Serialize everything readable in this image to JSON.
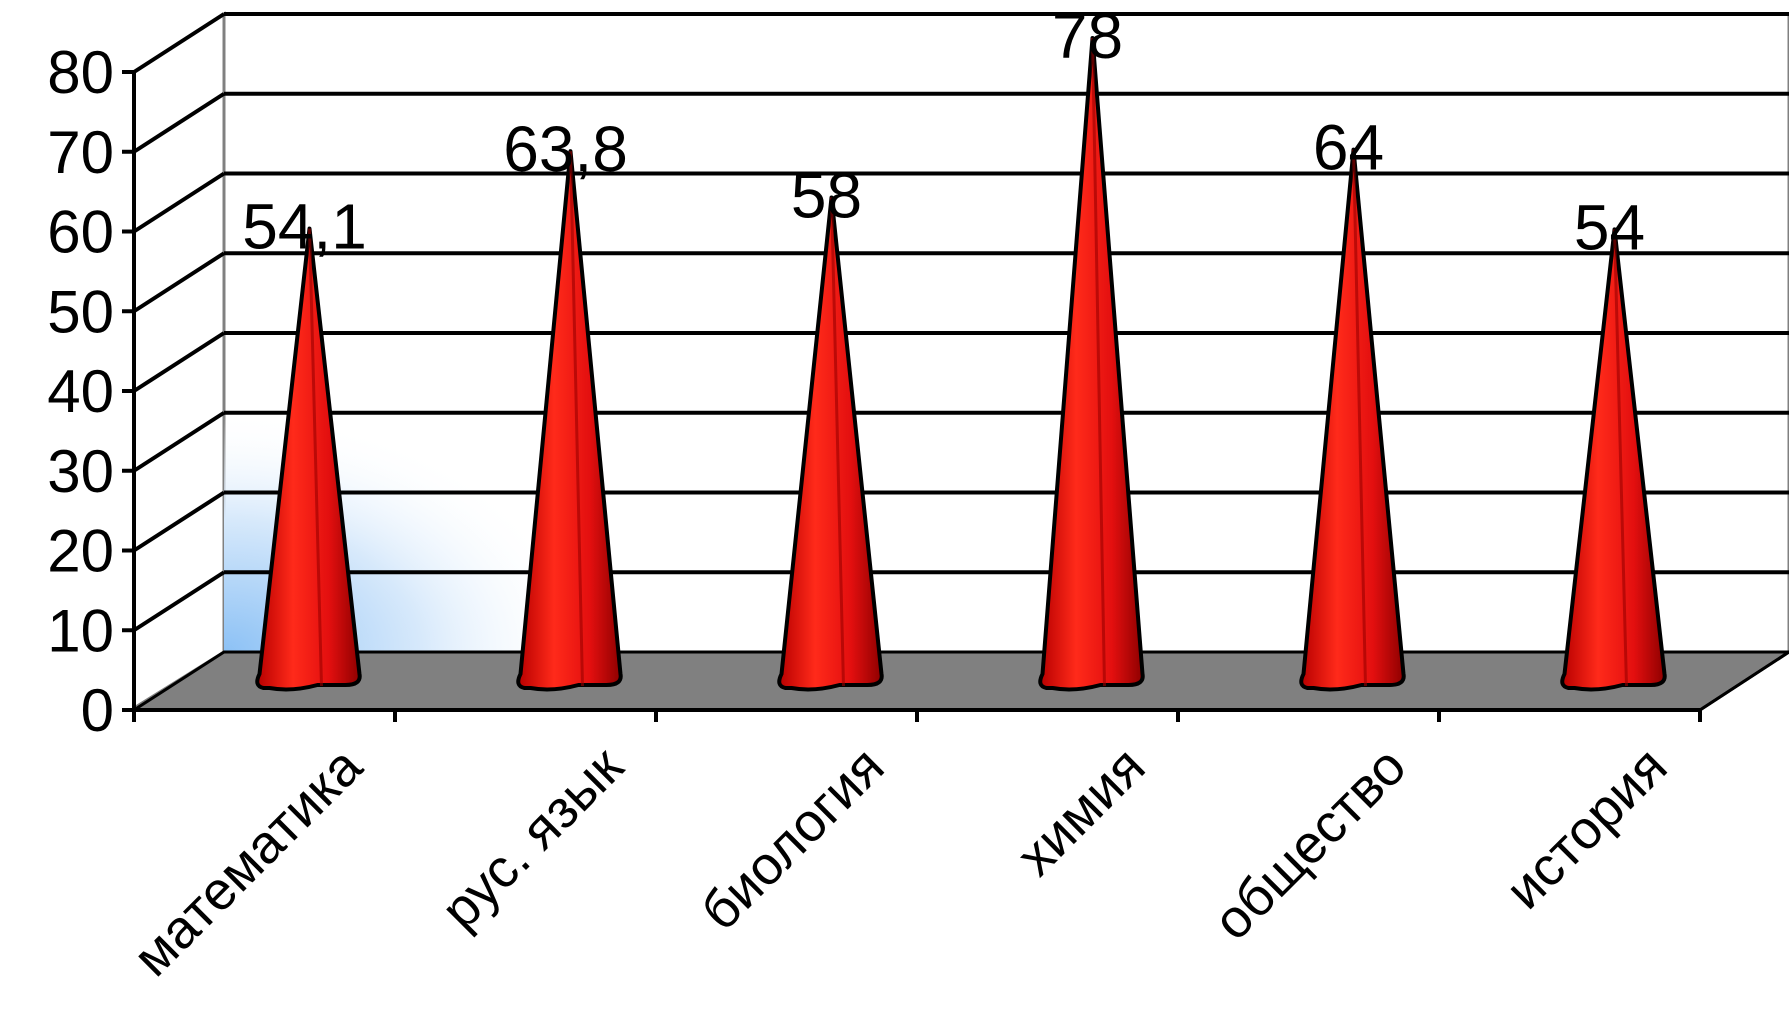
{
  "chart_data": {
    "type": "bar",
    "shape": "cone-3d",
    "categories": [
      "математика",
      "рус. язык",
      "биология",
      "химия",
      "общество",
      "история"
    ],
    "values": [
      54.1,
      63.8,
      58,
      78,
      64,
      54
    ],
    "data_labels": [
      "54,1",
      "63,8",
      "58",
      "78",
      "64",
      "54"
    ],
    "y_ticks": [
      "0",
      "10",
      "20",
      "30",
      "40",
      "50",
      "60",
      "70",
      "80"
    ],
    "ylim": [
      0,
      80
    ],
    "grid": true,
    "legend": "none",
    "colors": {
      "cone": "#e01010",
      "cone_dark": "#9a0000",
      "floor": "#808080",
      "wall_glow": "#8cc1f5",
      "grid": "#000000"
    }
  }
}
